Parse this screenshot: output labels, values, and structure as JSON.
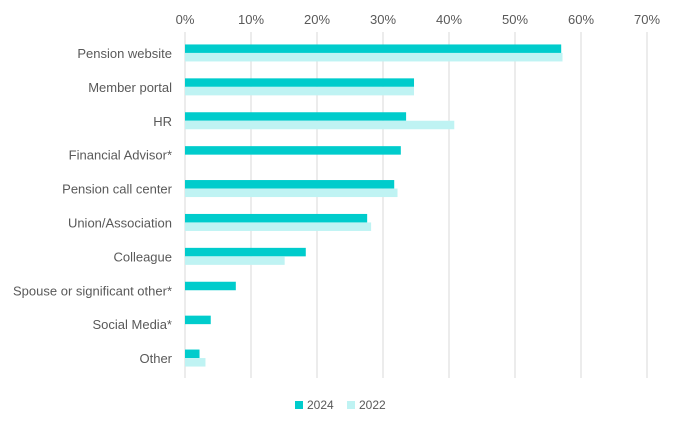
{
  "chart_data": {
    "type": "bar",
    "orientation": "horizontal",
    "categories": [
      "Pension website",
      "Member portal",
      "HR",
      "Financial Advisor*",
      "Pension call center",
      "Union/Association",
      "Colleague",
      "Spouse or significant other*",
      "Social Media*",
      "Other"
    ],
    "series": [
      {
        "name": "2024",
        "color": "#00CCCC",
        "values": [
          57,
          34.7,
          33.5,
          32.7,
          31.7,
          27.6,
          18.3,
          7.7,
          3.9,
          2.2
        ]
      },
      {
        "name": "2022",
        "color": "#BFF3F3",
        "values": [
          57.2,
          34.7,
          40.8,
          null,
          32.2,
          28.2,
          15.1,
          null,
          null,
          3.1
        ]
      }
    ],
    "xlim": [
      0,
      70
    ],
    "xticks": [
      0,
      10,
      20,
      30,
      40,
      50,
      60,
      70
    ],
    "tick_format": "percent",
    "grid": "vertical",
    "legend_position": "bottom"
  }
}
